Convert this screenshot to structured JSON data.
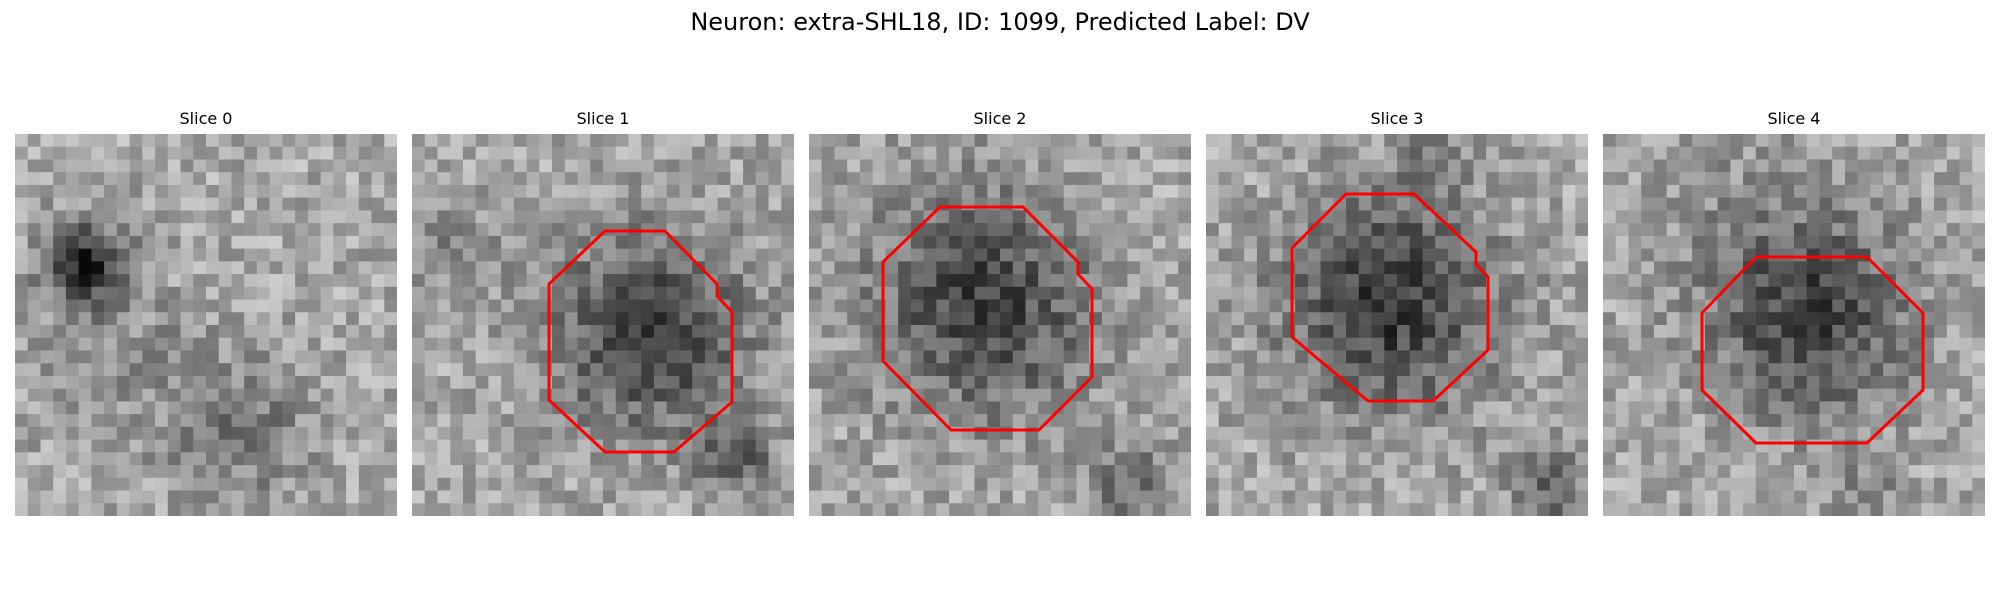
{
  "figure": {
    "suptitle": "Neuron: extra-SHL18, ID: 1099, Predicted Label: DV",
    "colormap": "gray",
    "roi_color": "#ff0000"
  },
  "panels": [
    {
      "title": "Slice 0",
      "has_roi": false
    },
    {
      "title": "Slice 1",
      "has_roi": true
    },
    {
      "title": "Slice 2",
      "has_roi": true
    },
    {
      "title": "Slice 3",
      "has_roi": true
    },
    {
      "title": "Slice 4",
      "has_roi": true
    }
  ]
}
